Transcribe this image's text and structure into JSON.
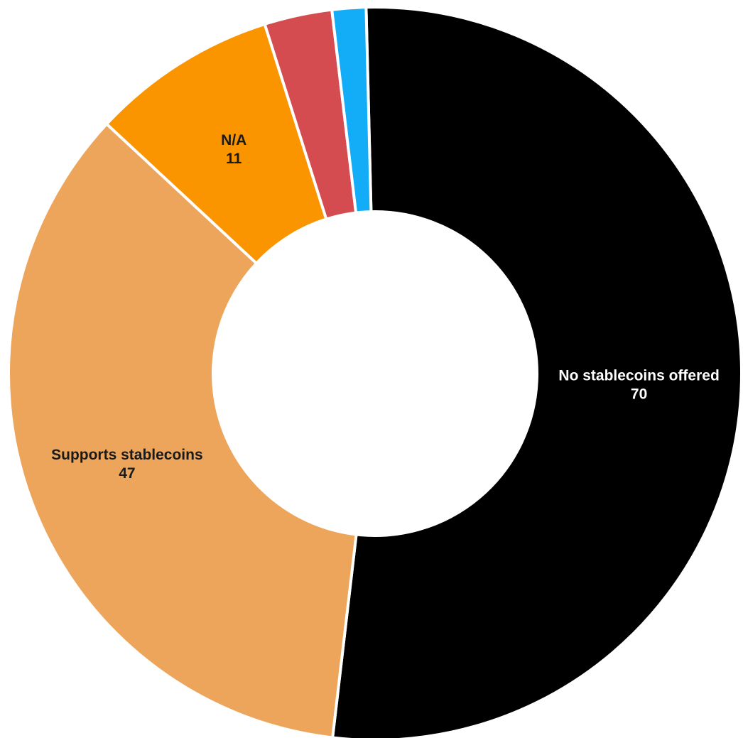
{
  "chart_data": {
    "type": "pie",
    "donut": true,
    "legend": "none",
    "slices": [
      {
        "label": "No stablecoins offered",
        "value": 70,
        "color": "#000000",
        "label_color": "#ffffff",
        "show_label": true
      },
      {
        "label": "Supports stablecoins",
        "value": 47,
        "color": "#EDA55B",
        "label_color": "#1a1a1a",
        "show_label": true
      },
      {
        "label": "N/A",
        "value": 11,
        "color": "#FA9500",
        "label_color": "#1a1a1a",
        "show_label": true
      },
      {
        "label": "",
        "value": 4,
        "color": "#D44C4F",
        "label_color": "#1a1a1a",
        "show_label": false
      },
      {
        "label": "",
        "value": 2,
        "color": "#12ADF6",
        "label_color": "#1a1a1a",
        "show_label": false
      }
    ]
  }
}
